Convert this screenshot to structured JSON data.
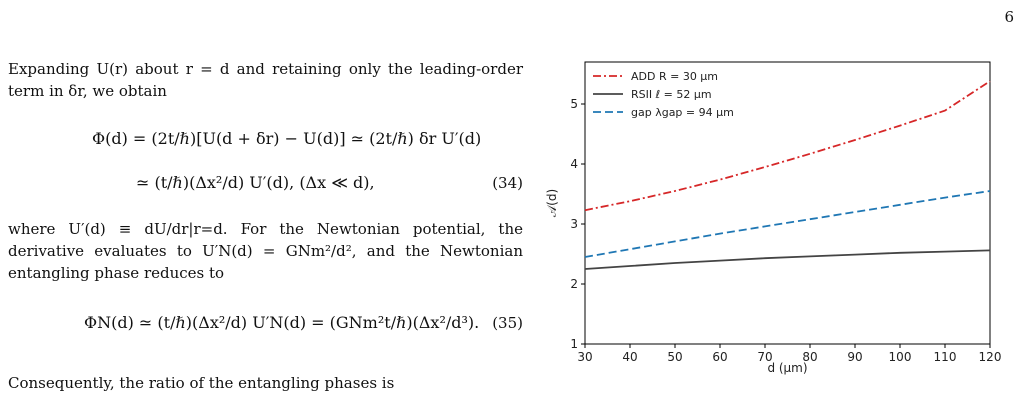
{
  "page_number": "6",
  "text": {
    "para1": "Expanding U(r) about r = d and retaining only the leading-order term in δr, we obtain",
    "eq34_line1": "Φ(d) = (2t/ℏ)[U(d + δr) − U(d)] ≃ (2t/ℏ) δr U′(d)",
    "eq34_line2": "≃ (t/ℏ)(Δx²/d) U′(d),   (Δx ≪ d),",
    "eq34_number": "(34)",
    "para2": "where U′(d) ≡ dU/dr|r=d. For the Newtonian potential, the derivative evaluates to U′N(d) = GNm²/d², and the Newtonian entangling phase reduces to",
    "eq35": "ΦN(d) ≃ (t/ℏ)(Δx²/d) U′N(d) = (GNm²t/ℏ)(Δx²/d³).",
    "eq35_number": "(35)",
    "para3": "Consequently, the ratio of the entangling phases is"
  },
  "chart_data": {
    "type": "line",
    "xlabel": "d (μm)",
    "ylabel": "𝒜(d)",
    "xlim": [
      30,
      120
    ],
    "ylim": [
      1,
      5.7
    ],
    "xticks": [
      "30",
      "40",
      "50",
      "60",
      "70",
      "80",
      "90",
      "100",
      "110",
      "120"
    ],
    "yticks": [
      "1",
      "2",
      "3",
      "4",
      "5"
    ],
    "legend_position": "top-left",
    "grid": false,
    "series": [
      {
        "name": "ADD  R = 30 μm",
        "color": "#d62728",
        "style": "dashdot",
        "x": [
          30,
          40,
          50,
          60,
          70,
          80,
          90,
          100,
          110,
          120
        ],
        "y": [
          3.23,
          3.38,
          3.55,
          3.74,
          3.95,
          4.17,
          4.4,
          4.64,
          4.89,
          5.38
        ]
      },
      {
        "name": "RSII ℓ = 52 μm",
        "color": "#444444",
        "style": "solid",
        "x": [
          30,
          40,
          50,
          60,
          70,
          80,
          90,
          100,
          110,
          120
        ],
        "y": [
          2.25,
          2.3,
          2.35,
          2.39,
          2.43,
          2.46,
          2.49,
          2.52,
          2.54,
          2.56
        ]
      },
      {
        "name": "gap λgap = 94 μm",
        "color": "#1f77b4",
        "style": "dashed",
        "x": [
          30,
          40,
          50,
          60,
          70,
          80,
          90,
          100,
          110,
          120
        ],
        "y": [
          2.45,
          2.58,
          2.71,
          2.84,
          2.96,
          3.08,
          3.2,
          3.32,
          3.44,
          3.55
        ]
      }
    ]
  }
}
